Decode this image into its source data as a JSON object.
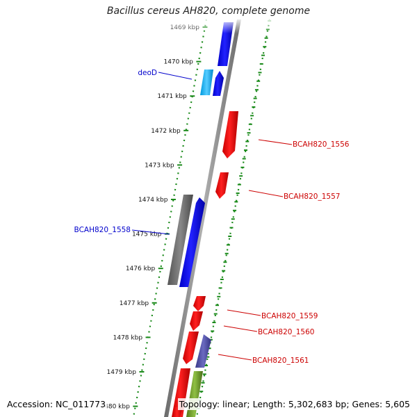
{
  "title": "Bacillus cereus AH820, complete genome",
  "footer": {
    "accession": "Accession: NC_011773",
    "stats": "Topology: linear; Length: 5,302,683 bp; Genes: 5,605"
  },
  "scale": {
    "unit": "kbp",
    "ticks": [
      "1469 kbp",
      "1470 kbp",
      "1471 kbp",
      "1472 kbp",
      "1473 kbp",
      "1474 kbp",
      "1475 kbp",
      "1476 kbp",
      "1477 kbp",
      "1478 kbp",
      "1479 kbp",
      "1480 kbp"
    ]
  },
  "gene_labels": [
    {
      "id": "deoD",
      "text": "deoD",
      "color": "#0000cc"
    },
    {
      "id": "BCAH820_1556",
      "text": "BCAH820_1556",
      "color": "#cc0000"
    },
    {
      "id": "BCAH820_1557",
      "text": "BCAH820_1557",
      "color": "#cc0000"
    },
    {
      "id": "BCAH820_1558",
      "text": "BCAH820_1558",
      "color": "#0000cc"
    },
    {
      "id": "BCAH820_1559",
      "text": "BCAH820_1559",
      "color": "#cc0000"
    },
    {
      "id": "BCAH820_1560",
      "text": "BCAH820_1560",
      "color": "#cc0000"
    },
    {
      "id": "BCAH820_1561",
      "text": "BCAH820_1561",
      "color": "#cc0000"
    }
  ],
  "colors": {
    "backbone": "#8a8a8a",
    "dots": "#1a8a1a",
    "forward_strand": "#0000ee",
    "reverse_strand": "#ee0000",
    "cyan_gene": "#22bbee",
    "grey_gene": "#666666",
    "purple_gene": "#4a4aa0",
    "olive_gene": "#6b9a2a"
  }
}
